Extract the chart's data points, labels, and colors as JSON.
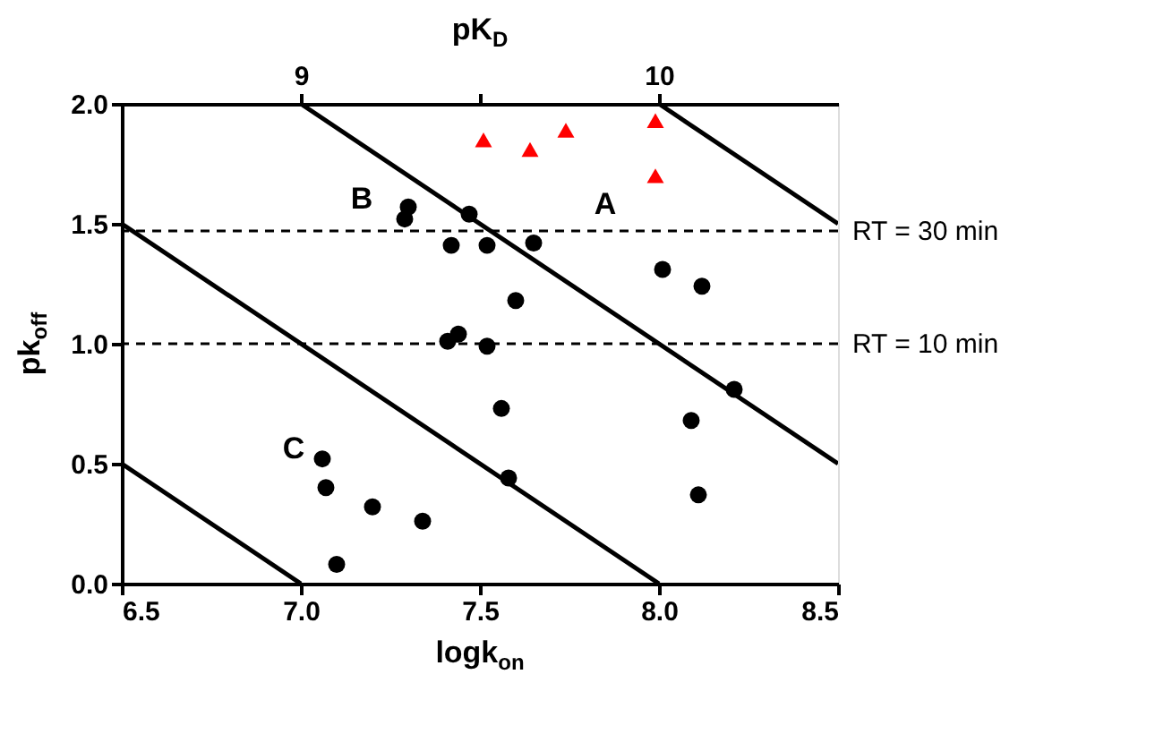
{
  "chart_data": {
    "type": "scatter",
    "xlabel": "logk$_{on}$",
    "ylabel": "pk$_{off}$",
    "x2label": "pK$_{D}$",
    "xlim": [
      6.5,
      8.5
    ],
    "xticks": [
      6.5,
      {
        "value": 7,
        "label": "7.0"
      },
      7.5,
      {
        "value": 8,
        "label": "8.0"
      },
      8.5
    ],
    "ylim": [
      0,
      2
    ],
    "yticks": [
      {
        "value": 0,
        "label": "0.0"
      },
      0.5,
      {
        "value": 1,
        "label": "1.0"
      },
      1.5,
      {
        "value": 2,
        "label": "2.0"
      }
    ],
    "x2lim": [
      8.5,
      10.5
    ],
    "x2ticks": [
      9,
      {
        "value": 9.5,
        "label": null
      },
      10
    ],
    "grid": false,
    "series": [
      {
        "marker": "circle",
        "color": "#000000",
        "x": [
          7.3,
          7.29,
          7.47,
          7.42,
          7.52,
          7.65,
          8.01,
          8.12,
          7.6,
          7.44,
          7.41,
          7.52,
          8.21,
          7.56,
          8.09,
          7.06,
          7.07,
          7.58,
          7.2,
          7.34,
          8.11,
          7.1
        ],
        "values": [
          1.57,
          1.52,
          1.54,
          1.41,
          1.41,
          1.42,
          1.31,
          1.24,
          1.18,
          1.04,
          1.01,
          0.99,
          0.81,
          0.73,
          0.68,
          0.52,
          0.4,
          0.44,
          0.32,
          0.26,
          0.37,
          0.08
        ]
      },
      {
        "marker": "triangle",
        "color": "#ff0000",
        "x": [
          7.51,
          7.64,
          7.74,
          7.99,
          7.99
        ],
        "values": [
          1.85,
          1.81,
          1.89,
          1.93,
          1.7
        ]
      },
      {
        "type": "line",
        "color": "#000000",
        "x": [
          6.5,
          7.0
        ],
        "values": [
          0.5,
          0
        ]
      },
      {
        "type": "line",
        "color": "#000000",
        "x": [
          6.5,
          8.0
        ],
        "values": [
          1.5,
          0
        ]
      },
      {
        "type": "line",
        "color": "#000000",
        "x": [
          7.0,
          8.5
        ],
        "values": [
          2.0,
          0.5
        ]
      },
      {
        "type": "line",
        "color": "#000000",
        "x": [
          8.0,
          8.5
        ],
        "values": [
          2.0,
          1.5
        ]
      }
    ],
    "ref_lines": [
      {
        "axis": "y",
        "value": 1.47,
        "line_style": "dashed",
        "color": "#000000"
      },
      {
        "axis": "y",
        "value": 1.0,
        "line_style": "dashed",
        "color": "#000000"
      }
    ],
    "annotations": [
      "A",
      "B",
      "C",
      "RT = 30 min",
      "RT = 10 min"
    ]
  }
}
